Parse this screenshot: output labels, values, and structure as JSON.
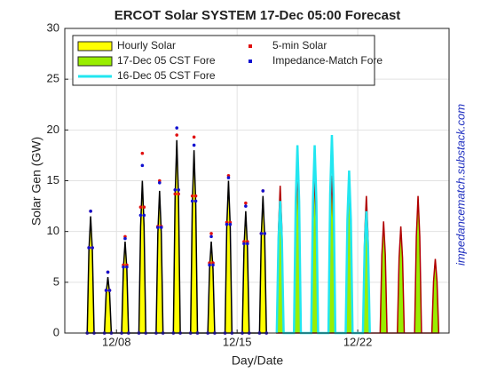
{
  "chart_data": {
    "type": "line",
    "title": "ERCOT Solar SYSTEM  17-Dec 05:00 Forecast",
    "xlabel": "Day/Date",
    "ylabel": "Solar Gen (GW)",
    "annotation": "impedancematch.substack.com",
    "xlim": [
      5,
      27.3
    ],
    "ylim": [
      0,
      30
    ],
    "xticks": [
      {
        "value": 8,
        "label": "12/08"
      },
      {
        "value": 15,
        "label": "12/15"
      },
      {
        "value": 22,
        "label": "12/22"
      }
    ],
    "yticks": [
      0,
      5,
      10,
      15,
      20,
      25,
      30
    ],
    "grid": true,
    "legend": "upper left",
    "series": [
      {
        "name": "Hourly Solar",
        "style": "area",
        "color": "#ffff00",
        "edge": "#000000",
        "x": [
          6.3,
          6.4,
          6.5,
          6.6,
          6.7,
          7.3,
          7.4,
          7.5,
          7.6,
          7.7,
          8.3,
          8.4,
          8.5,
          8.6,
          8.7,
          9.3,
          9.4,
          9.5,
          9.6,
          9.7,
          10.3,
          10.4,
          10.5,
          10.6,
          10.7,
          11.3,
          11.4,
          11.5,
          11.6,
          11.7,
          12.3,
          12.4,
          12.5,
          12.6,
          12.7,
          13.3,
          13.4,
          13.5,
          13.6,
          13.7,
          14.3,
          14.4,
          14.5,
          14.6,
          14.7,
          15.3,
          15.4,
          15.5,
          15.6,
          15.7,
          16.3,
          16.4,
          16.5,
          16.6,
          16.7
        ],
        "values": [
          0,
          8.1,
          11.5,
          8.1,
          0,
          0,
          3.9,
          5.5,
          3.9,
          0,
          0,
          6.3,
          9,
          6.3,
          0,
          0,
          10.5,
          15,
          10.5,
          0,
          0,
          9.8,
          14,
          9.8,
          0,
          0,
          13.3,
          19,
          13.3,
          0,
          0,
          12.6,
          18,
          12.6,
          0,
          0,
          6.3,
          9,
          6.3,
          0,
          0,
          10.5,
          15,
          10.5,
          0,
          0,
          8.4,
          12,
          8.4,
          0,
          0,
          9.5,
          13.5,
          9.5,
          0
        ]
      },
      {
        "name": "17-Dec 05 CST Fore",
        "style": "area",
        "color": "#99ee00",
        "edge": "#b00000",
        "x": [
          17.3,
          17.4,
          17.5,
          17.6,
          17.7,
          18.3,
          18.4,
          18.5,
          18.6,
          18.7,
          19.3,
          19.4,
          19.5,
          19.6,
          19.7,
          20.3,
          20.4,
          20.5,
          20.6,
          20.7,
          21.3,
          21.4,
          21.5,
          21.6,
          21.7,
          22.3,
          22.4,
          22.5,
          22.6,
          22.7,
          23.3,
          23.4,
          23.5,
          23.6,
          23.7,
          24.3,
          24.4,
          24.5,
          24.6,
          24.7,
          25.3,
          25.4,
          25.5,
          25.6,
          25.7,
          26.3,
          26.4,
          26.5,
          26.6,
          26.7
        ],
        "values": [
          0,
          10.2,
          14.5,
          10.2,
          0,
          0,
          11.2,
          16,
          11.2,
          0,
          0,
          10.9,
          15.5,
          10.9,
          0,
          0,
          10.9,
          15.5,
          10.9,
          0,
          0,
          10.5,
          15,
          10.5,
          0,
          0,
          9.5,
          13.5,
          9.5,
          0,
          0,
          7.7,
          11,
          7.7,
          0,
          0,
          7.4,
          10.5,
          7.4,
          0,
          0,
          9.5,
          13.5,
          9.5,
          0,
          0,
          5.1,
          7.3,
          5.1,
          0
        ]
      },
      {
        "name": "16-Dec 05 CST Fore",
        "style": "line",
        "color": "#22e6f0",
        "x": [
          17.3,
          17.4,
          17.5,
          17.6,
          17.7,
          18.3,
          18.4,
          18.5,
          18.6,
          18.7,
          19.3,
          19.4,
          19.5,
          19.6,
          19.7,
          20.3,
          20.4,
          20.5,
          20.6,
          20.7,
          21.3,
          21.4,
          21.5,
          21.6,
          21.7,
          22.3,
          22.4,
          22.5,
          22.6,
          22.7
        ],
        "values": [
          0,
          9.1,
          13,
          9.1,
          0,
          0,
          13,
          18.5,
          13,
          0,
          0,
          13,
          18.5,
          13,
          0,
          0,
          13.7,
          19.5,
          13.7,
          0,
          0,
          11.2,
          16,
          11.2,
          0,
          0,
          8.4,
          12,
          8.4,
          0
        ]
      },
      {
        "name": "5-min Solar",
        "style": "dots",
        "color": "#e01010",
        "x": [
          6.3,
          6.4,
          6.5,
          6.6,
          6.7,
          7.3,
          7.4,
          7.5,
          7.6,
          7.7,
          8.3,
          8.4,
          8.5,
          8.6,
          8.7,
          9.3,
          9.4,
          9.5,
          9.6,
          9.7,
          10.3,
          10.4,
          10.5,
          10.6,
          10.7,
          11.3,
          11.4,
          11.5,
          11.6,
          11.7,
          12.3,
          12.4,
          12.5,
          12.6,
          12.7,
          13.3,
          13.4,
          13.5,
          13.6,
          13.7,
          14.3,
          14.4,
          14.5,
          14.6,
          14.7,
          15.3,
          15.4,
          15.5,
          15.6,
          15.7,
          16.3,
          16.4,
          16.5,
          16.6,
          16.7
        ],
        "values": [
          0,
          8.4,
          12,
          8.4,
          0,
          0,
          4.2,
          6,
          4.2,
          0,
          0,
          6.7,
          9.5,
          6.7,
          0,
          0,
          12.4,
          17.7,
          12.4,
          0,
          0,
          10.5,
          15,
          10.5,
          0,
          0,
          13.7,
          19.5,
          13.7,
          0,
          0,
          13.5,
          19.3,
          13.5,
          0,
          0,
          6.9,
          9.8,
          6.9,
          0,
          0,
          10.9,
          15.5,
          10.9,
          0,
          0,
          9,
          12.8,
          9,
          0,
          0,
          9.8,
          14,
          9.8,
          0
        ]
      },
      {
        "name": "Impedance-Match Fore",
        "style": "dots",
        "color": "#1010d0",
        "x": [
          6.3,
          6.4,
          6.5,
          6.6,
          6.7,
          7.3,
          7.4,
          7.5,
          7.6,
          7.7,
          8.3,
          8.4,
          8.5,
          8.6,
          8.7,
          9.3,
          9.4,
          9.5,
          9.6,
          9.7,
          10.3,
          10.4,
          10.5,
          10.6,
          10.7,
          11.3,
          11.4,
          11.5,
          11.6,
          11.7,
          12.3,
          12.4,
          12.5,
          12.6,
          12.7,
          13.3,
          13.4,
          13.5,
          13.6,
          13.7,
          14.3,
          14.4,
          14.5,
          14.6,
          14.7,
          15.3,
          15.4,
          15.5,
          15.6,
          15.7,
          16.3,
          16.4,
          16.5,
          16.6,
          16.7
        ],
        "values": [
          0,
          8.4,
          12,
          8.4,
          0,
          0,
          4.2,
          6,
          4.2,
          0,
          0,
          6.5,
          9.3,
          6.5,
          0,
          0,
          11.6,
          16.5,
          11.6,
          0,
          0,
          10.4,
          14.8,
          10.4,
          0,
          0,
          14.1,
          20.2,
          14.1,
          0,
          0,
          13,
          18.5,
          13,
          0,
          0,
          6.7,
          9.5,
          6.7,
          0,
          0,
          10.7,
          15.3,
          10.7,
          0,
          0,
          8.8,
          12.5,
          8.8,
          0,
          0,
          9.8,
          14,
          9.8,
          0
        ]
      }
    ]
  }
}
